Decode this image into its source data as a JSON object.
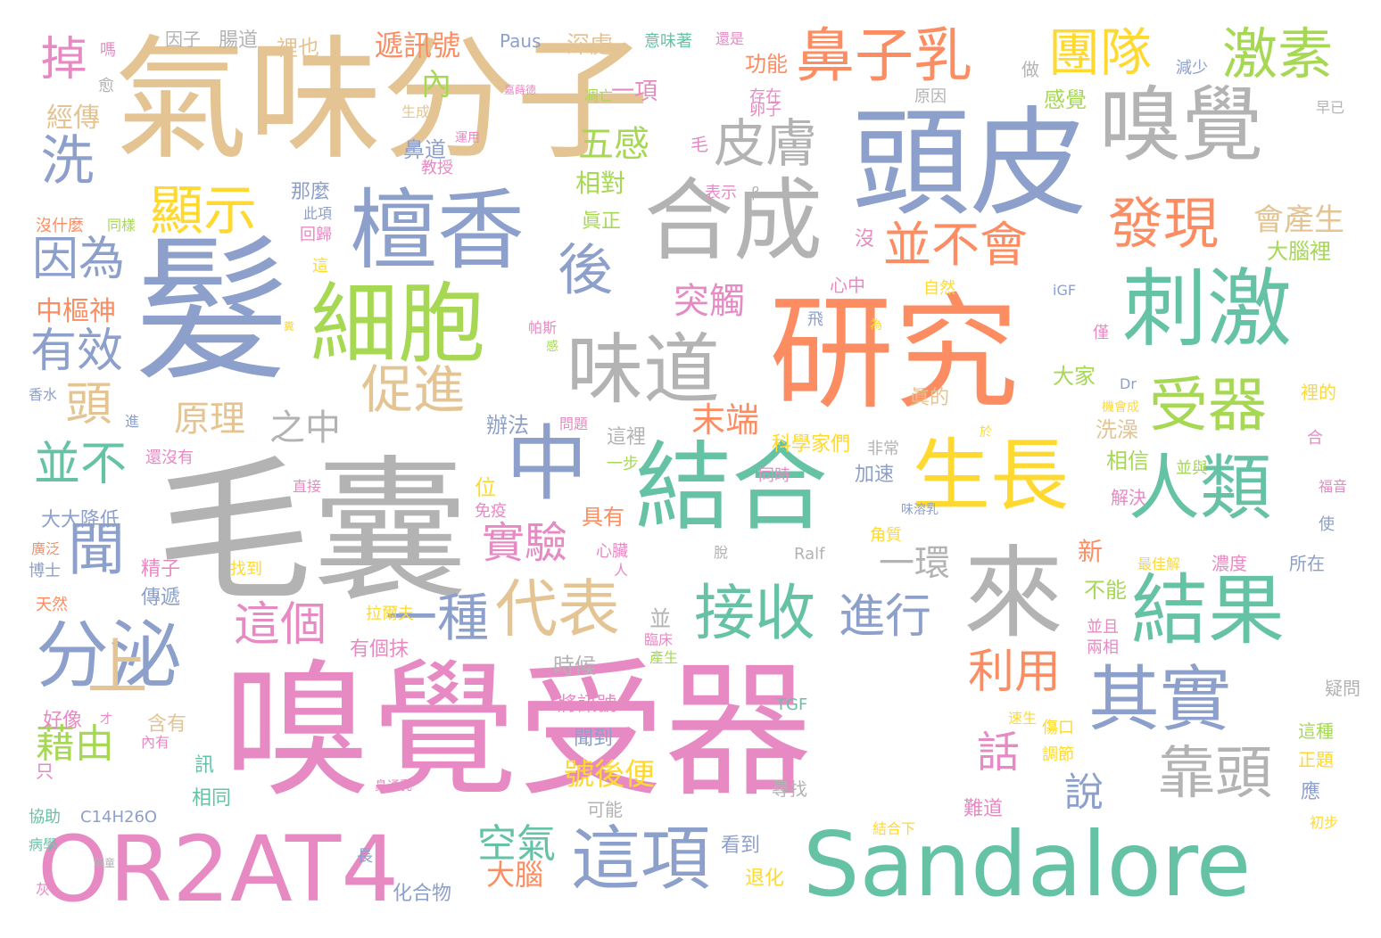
{
  "palette": {
    "green": "#66c2a5",
    "orange": "#fc8d62",
    "blue": "#8da0cb",
    "pink": "#e78ac3",
    "lime": "#a6d854",
    "yellow": "#ffd92f",
    "tan": "#e5c494",
    "gray": "#b3b3b3"
  },
  "words": [
    {
      "text": "嗅覺受器",
      "color": "pink"
    },
    {
      "text": "毛囊",
      "color": "gray"
    },
    {
      "text": "研究",
      "color": "orange"
    },
    {
      "text": "氣味分子",
      "color": "tan"
    },
    {
      "text": "髮",
      "color": "blue"
    },
    {
      "text": "頭皮",
      "color": "blue"
    },
    {
      "text": "結合",
      "color": "green"
    },
    {
      "text": "Sandalore",
      "color": "green"
    },
    {
      "text": "OR2AT4",
      "color": "pink"
    },
    {
      "text": "嗅覺",
      "color": "gray"
    },
    {
      "text": "檀香",
      "color": "blue"
    },
    {
      "text": "細胞",
      "color": "lime"
    },
    {
      "text": "刺激",
      "color": "green"
    },
    {
      "text": "來",
      "color": "gray"
    },
    {
      "text": "合成",
      "color": "gray"
    },
    {
      "text": "生長",
      "color": "yellow"
    },
    {
      "text": "結果",
      "color": "green"
    },
    {
      "text": "中",
      "color": "blue"
    },
    {
      "text": "味道",
      "color": "gray"
    },
    {
      "text": "分泌",
      "color": "blue"
    },
    {
      "text": "其實",
      "color": "blue"
    },
    {
      "text": "人類",
      "color": "green"
    },
    {
      "text": "這項",
      "color": "blue"
    },
    {
      "text": "鼻子乳",
      "color": "orange"
    },
    {
      "text": "受器",
      "color": "lime"
    },
    {
      "text": "接收",
      "color": "green"
    },
    {
      "text": "代表",
      "color": "tan"
    },
    {
      "text": "靠頭",
      "color": "gray"
    },
    {
      "text": "發現",
      "color": "orange"
    },
    {
      "text": "顯示",
      "color": "yellow"
    },
    {
      "text": "激素",
      "color": "lime"
    },
    {
      "text": "團隊",
      "color": "yellow"
    },
    {
      "text": "皮膚",
      "color": "gray"
    },
    {
      "text": "後",
      "color": "blue"
    },
    {
      "text": "並不會",
      "color": "orange"
    },
    {
      "text": "促進",
      "color": "tan"
    },
    {
      "text": "上",
      "color": "tan"
    },
    {
      "text": "聞",
      "color": "blue"
    },
    {
      "text": "洗",
      "color": "blue"
    },
    {
      "text": "一種",
      "color": "blue"
    },
    {
      "text": "這個",
      "color": "pink"
    },
    {
      "text": "因為",
      "color": "blue"
    },
    {
      "text": "進行",
      "color": "blue"
    },
    {
      "text": "利用",
      "color": "orange"
    },
    {
      "text": "有效",
      "color": "blue"
    },
    {
      "text": "並不",
      "color": "green"
    },
    {
      "text": "掉",
      "color": "pink"
    },
    {
      "text": "頭",
      "color": "tan"
    },
    {
      "text": "實驗",
      "color": "pink"
    },
    {
      "text": "空氣",
      "color": "green"
    },
    {
      "text": "話",
      "color": "pink"
    },
    {
      "text": "藉由",
      "color": "lime"
    },
    {
      "text": "一環",
      "color": "gray"
    },
    {
      "text": "末端",
      "color": "orange"
    },
    {
      "text": "五感",
      "color": "lime"
    },
    {
      "text": "之中",
      "color": "gray"
    },
    {
      "text": "原理",
      "color": "tan"
    },
    {
      "text": "說",
      "color": "blue"
    },
    {
      "text": "突觸",
      "color": "pink"
    },
    {
      "text": "會產生",
      "color": "tan"
    },
    {
      "text": "大腦",
      "color": "orange"
    },
    {
      "text": "遞訊號",
      "color": "orange"
    },
    {
      "text": "相對",
      "color": "lime"
    },
    {
      "text": "號後便",
      "color": "yellow"
    },
    {
      "text": "中樞神",
      "color": "orange"
    },
    {
      "text": "經傳",
      "color": "tan"
    },
    {
      "text": "一項",
      "color": "pink"
    },
    {
      "text": "內",
      "color": "lime"
    },
    {
      "text": "大腦裡",
      "color": "lime"
    },
    {
      "text": "洗澡",
      "color": "tan"
    },
    {
      "text": "感覺",
      "color": "lime"
    },
    {
      "text": "相信",
      "color": "lime"
    },
    {
      "text": "時候",
      "color": "gray"
    },
    {
      "text": "不能",
      "color": "lime"
    },
    {
      "text": "新",
      "color": "orange"
    },
    {
      "text": "大家",
      "color": "lime"
    },
    {
      "text": "功能",
      "color": "orange"
    },
    {
      "text": "深處",
      "color": "tan"
    },
    {
      "text": "Paus",
      "color": "blue"
    },
    {
      "text": "裡也",
      "color": "tan"
    },
    {
      "text": "腸道",
      "color": "gray"
    },
    {
      "text": "因子",
      "color": "gray"
    },
    {
      "text": "嗎",
      "color": "pink"
    },
    {
      "text": "辦法",
      "color": "blue"
    },
    {
      "text": "眞正",
      "color": "lime"
    },
    {
      "text": "具有",
      "color": "orange"
    },
    {
      "text": "精子",
      "color": "pink"
    },
    {
      "text": "傳遞",
      "color": "blue"
    },
    {
      "text": "科學家們",
      "color": "yellow"
    },
    {
      "text": "將訊號",
      "color": "pink"
    },
    {
      "text": "聞到",
      "color": "blue"
    },
    {
      "text": "有個抹",
      "color": "pink"
    },
    {
      "text": "含有",
      "color": "tan"
    },
    {
      "text": "好像",
      "color": "pink"
    },
    {
      "text": "訊",
      "color": "green"
    },
    {
      "text": "相同",
      "color": "green"
    },
    {
      "text": "協助",
      "color": "green"
    },
    {
      "text": "C14H26O",
      "color": "blue"
    },
    {
      "text": "大大降低",
      "color": "blue"
    },
    {
      "text": "博士",
      "color": "blue"
    },
    {
      "text": "鼻道",
      "color": "blue"
    },
    {
      "text": "教授",
      "color": "pink"
    },
    {
      "text": "那麼",
      "color": "blue"
    },
    {
      "text": "回歸",
      "color": "pink"
    },
    {
      "text": "自然",
      "color": "yellow"
    },
    {
      "text": "加速",
      "color": "blue"
    },
    {
      "text": "眞的",
      "color": "tan"
    },
    {
      "text": "難道",
      "color": "pink"
    },
    {
      "text": "濃度",
      "color": "pink"
    },
    {
      "text": "所在",
      "color": "blue"
    },
    {
      "text": "解決",
      "color": "pink"
    },
    {
      "text": "疑問",
      "color": "gray"
    },
    {
      "text": "這種",
      "color": "lime"
    },
    {
      "text": "正題",
      "color": "yellow"
    },
    {
      "text": "看到",
      "color": "blue"
    },
    {
      "text": "退化",
      "color": "yellow"
    },
    {
      "text": "化合物",
      "color": "blue"
    },
    {
      "text": "位",
      "color": "yellow"
    },
    {
      "text": "免疫",
      "color": "pink"
    },
    {
      "text": "原因",
      "color": "gray"
    },
    {
      "text": "卵子",
      "color": "pink"
    },
    {
      "text": "存在",
      "color": "pink"
    },
    {
      "text": "做",
      "color": "gray"
    },
    {
      "text": "減少",
      "color": "blue"
    },
    {
      "text": "早已",
      "color": "gray"
    },
    {
      "text": "心中",
      "color": "pink"
    },
    {
      "text": "iGF",
      "color": "blue"
    },
    {
      "text": "Dr",
      "color": "blue"
    },
    {
      "text": "天然",
      "color": "orange"
    },
    {
      "text": "找到",
      "color": "yellow"
    },
    {
      "text": "可能",
      "color": "gray"
    },
    {
      "text": "尋找",
      "color": "gray"
    },
    {
      "text": "病學",
      "color": "green"
    },
    {
      "text": "沒什麼",
      "color": "orange"
    },
    {
      "text": "同樣",
      "color": "lime"
    },
    {
      "text": "此項",
      "color": "blue"
    },
    {
      "text": "生成",
      "color": "tan"
    },
    {
      "text": "運用",
      "color": "pink"
    },
    {
      "text": "表示",
      "color": "pink"
    },
    {
      "text": "β",
      "color": "gray"
    },
    {
      "text": "意味著",
      "color": "green"
    },
    {
      "text": "還是",
      "color": "pink"
    },
    {
      "text": "毛",
      "color": "pink"
    },
    {
      "text": "凋亡",
      "color": "lime"
    },
    {
      "text": "帕斯",
      "color": "pink"
    },
    {
      "text": "沒",
      "color": "pink"
    },
    {
      "text": "飛",
      "color": "blue"
    },
    {
      "text": "為",
      "color": "yellow"
    },
    {
      "text": "僅",
      "color": "pink"
    },
    {
      "text": "裡的",
      "color": "yellow"
    },
    {
      "text": "合",
      "color": "pink"
    },
    {
      "text": "於",
      "color": "yellow"
    },
    {
      "text": "非常",
      "color": "gray"
    },
    {
      "text": "同時",
      "color": "pink"
    },
    {
      "text": "並與",
      "color": "lime"
    },
    {
      "text": "這裡",
      "color": "gray"
    },
    {
      "text": "一步",
      "color": "lime"
    },
    {
      "text": "問題",
      "color": "pink"
    },
    {
      "text": "進",
      "color": "blue"
    },
    {
      "text": "還沒有",
      "color": "pink"
    },
    {
      "text": "直接",
      "color": "pink"
    },
    {
      "text": "廣泛",
      "color": "orange"
    },
    {
      "text": "只",
      "color": "pink"
    },
    {
      "text": "內有",
      "color": "pink"
    },
    {
      "text": "才",
      "color": "pink"
    },
    {
      "text": "香水",
      "color": "blue"
    },
    {
      "text": "愈",
      "color": "gray"
    },
    {
      "text": "鼻通乳",
      "color": "pink"
    },
    {
      "text": "這",
      "color": "yellow"
    },
    {
      "text": "感",
      "color": "lime"
    },
    {
      "text": "糞",
      "color": "yellow"
    },
    {
      "text": "人",
      "color": "pink"
    },
    {
      "text": "心臟",
      "color": "pink"
    },
    {
      "text": "拉爾夫",
      "color": "yellow"
    },
    {
      "text": "並",
      "color": "gray"
    },
    {
      "text": "臨床",
      "color": "pink"
    },
    {
      "text": "產生",
      "color": "lime"
    },
    {
      "text": "TGF",
      "color": "green"
    },
    {
      "text": "脫",
      "color": "gray"
    },
    {
      "text": "Ralf",
      "color": "gray"
    },
    {
      "text": "角質",
      "color": "yellow"
    },
    {
      "text": "味溶乳",
      "color": "blue"
    },
    {
      "text": "並且",
      "color": "pink"
    },
    {
      "text": "兩相",
      "color": "pink"
    },
    {
      "text": "傷口",
      "color": "yellow"
    },
    {
      "text": "調節",
      "color": "yellow"
    },
    {
      "text": "速生",
      "color": "yellow"
    },
    {
      "text": "最佳解",
      "color": "yellow"
    },
    {
      "text": "應",
      "color": "blue"
    },
    {
      "text": "使",
      "color": "blue"
    },
    {
      "text": "福音",
      "color": "pink"
    },
    {
      "text": "初步",
      "color": "yellow"
    },
    {
      "text": "結合下",
      "color": "yellow"
    },
    {
      "text": "長",
      "color": "blue"
    },
    {
      "text": "蔚童",
      "color": "gray"
    },
    {
      "text": "機會成",
      "color": "yellow"
    },
    {
      "text": "灰",
      "color": "pink"
    },
    {
      "text": "嘉蒔德",
      "color": "pink"
    }
  ]
}
